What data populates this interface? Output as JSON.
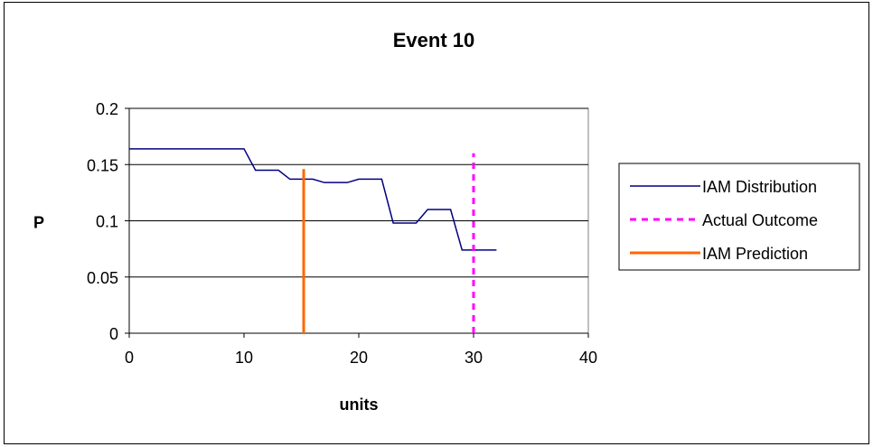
{
  "chart_data": {
    "type": "line",
    "title": "Event 10",
    "xlabel": "units",
    "ylabel": "P",
    "xlim": [
      0,
      40
    ],
    "ylim": [
      0,
      0.2
    ],
    "x_ticks": [
      "0",
      "10",
      "20",
      "30",
      "40"
    ],
    "y_ticks": [
      "0",
      "0.05",
      "0.1",
      "0.15",
      "0.2"
    ],
    "grid": "horizontal",
    "legend_position": "right",
    "series": [
      {
        "name": "IAM Distribution",
        "color": "#000080",
        "style": "solid",
        "x": [
          0,
          1,
          2,
          3,
          4,
          5,
          6,
          7,
          8,
          9,
          10,
          11,
          12,
          13,
          14,
          15,
          16,
          17,
          18,
          19,
          20,
          21,
          22,
          23,
          24,
          25,
          26,
          27,
          28,
          29,
          30,
          31,
          32
        ],
        "y": [
          0.164,
          0.164,
          0.164,
          0.164,
          0.164,
          0.164,
          0.164,
          0.164,
          0.164,
          0.164,
          0.164,
          0.145,
          0.145,
          0.145,
          0.137,
          0.137,
          0.137,
          0.134,
          0.134,
          0.134,
          0.137,
          0.137,
          0.137,
          0.098,
          0.098,
          0.098,
          0.11,
          0.11,
          0.11,
          0.074,
          0.074,
          0.074,
          0.074
        ]
      },
      {
        "name": "Actual Outcome",
        "color": "#ff00ff",
        "style": "dashed",
        "x": [
          30,
          30
        ],
        "y": [
          0,
          0.16
        ]
      },
      {
        "name": "IAM Prediction",
        "color": "#ff6600",
        "style": "solid",
        "x": [
          15.2,
          15.2
        ],
        "y": [
          0,
          0.146
        ]
      }
    ]
  }
}
